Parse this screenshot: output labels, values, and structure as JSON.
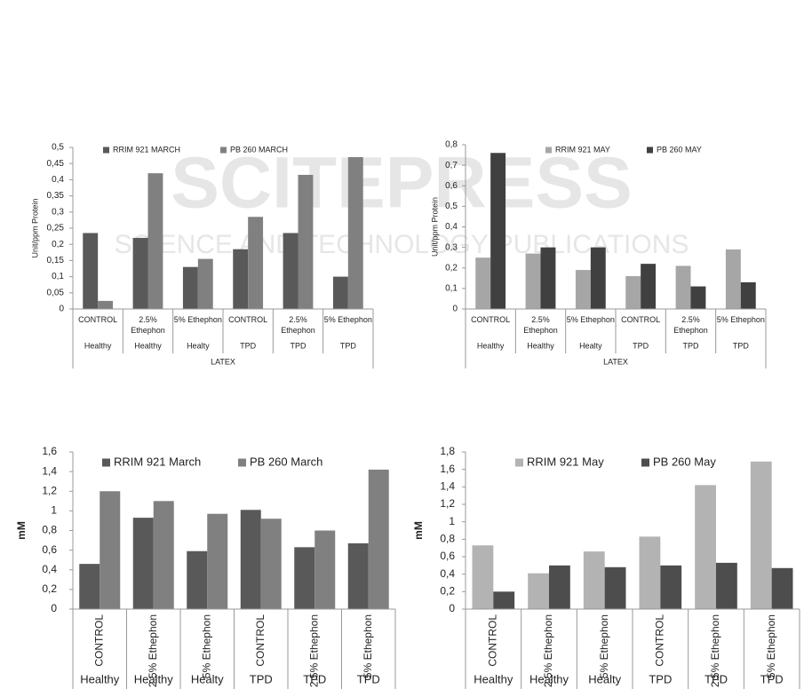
{
  "watermark": {
    "title": "SCITEPRESS",
    "subtitle": "SCIENCE AND TECHNOLOGY PUBLICATIONS"
  },
  "chart_data": [
    {
      "type": "bar",
      "ylabel": "Unit/ppm Protein",
      "xlabel": "LATEX",
      "categories": [
        "CONTROL",
        "2.5% Ethephon",
        "5% Ethephon",
        "CONTROL",
        "2.5% Ethephon",
        "5% Ethephon"
      ],
      "groups": [
        "Healthy",
        "Healthy",
        "Healty",
        "TPD",
        "TPD",
        "TPD"
      ],
      "series": [
        {
          "name": "RRIM 921 MARCH",
          "color": "#595959",
          "values": [
            0.235,
            0.22,
            0.13,
            0.185,
            0.235,
            0.1
          ]
        },
        {
          "name": "PB 260 MARCH",
          "color": "#808080",
          "values": [
            0.025,
            0.42,
            0.155,
            0.285,
            0.415,
            0.47
          ]
        }
      ],
      "ylim": [
        0,
        0.5
      ],
      "yticks": [
        0,
        {
          "value": 0.05,
          "label": "0,05"
        },
        {
          "value": 0.1,
          "label": "0,1"
        },
        {
          "value": 0.15,
          "label": "0,15"
        },
        {
          "value": 0.2,
          "label": "0,2"
        },
        {
          "value": 0.25,
          "label": "0,25"
        },
        {
          "value": 0.3,
          "label": "0,3"
        },
        {
          "value": 0.35,
          "label": "0,35"
        },
        {
          "value": 0.4,
          "label": "0,4"
        },
        {
          "value": 0.45,
          "label": "0,45"
        },
        {
          "value": 0.5,
          "label": "0,5"
        }
      ]
    },
    {
      "type": "bar",
      "ylabel": "Unit/ppm Protein",
      "xlabel": "LATEX",
      "categories": [
        "CONTROL",
        "2.5% Ethephon",
        "5% Ethephon",
        "CONTROL",
        "2.5% Ethephon",
        "5% Ethephon"
      ],
      "groups": [
        "Healthy",
        "Healthy",
        "Healty",
        "TPD",
        "TPD",
        "TPD"
      ],
      "series": [
        {
          "name": "RRIM 921 MAY",
          "color": "#a6a6a6",
          "values": [
            0.25,
            0.27,
            0.19,
            0.16,
            0.21,
            0.29
          ]
        },
        {
          "name": "PB 260 MAY",
          "color": "#404040",
          "values": [
            0.76,
            0.3,
            0.3,
            0.22,
            0.11,
            0.13
          ]
        }
      ],
      "ylim": [
        0,
        0.8
      ],
      "yticks": [
        0,
        {
          "value": 0.1,
          "label": "0,1"
        },
        {
          "value": 0.2,
          "label": "0,2"
        },
        {
          "value": 0.3,
          "label": "0,3"
        },
        {
          "value": 0.4,
          "label": "0,4"
        },
        {
          "value": 0.5,
          "label": "0,5"
        },
        {
          "value": 0.6,
          "label": "0,6"
        },
        {
          "value": 0.7,
          "label": "0,7"
        },
        {
          "value": 0.8,
          "label": "0,8"
        }
      ]
    },
    {
      "type": "bar",
      "ylabel": "mM",
      "categories": [
        "CONTROL",
        "2.5% Ethephon",
        "5% Ethephon",
        "CONTROL",
        "2.5% Ethephon",
        "5% Ethephon"
      ],
      "groups": [
        "Healthy",
        "Healthy",
        "Healty",
        "TPD",
        "TPD",
        "TPD"
      ],
      "series": [
        {
          "name": "RRIM 921 March",
          "color": "#595959",
          "values": [
            0.46,
            0.93,
            0.59,
            1.01,
            0.63,
            0.67
          ]
        },
        {
          "name": "PB 260 March",
          "color": "#808080",
          "values": [
            1.2,
            1.1,
            0.97,
            0.92,
            0.8,
            1.42
          ]
        }
      ],
      "ylim": [
        0,
        1.6
      ],
      "yticks": [
        0,
        {
          "value": 0.2,
          "label": "0,2"
        },
        {
          "value": 0.4,
          "label": "0,4"
        },
        {
          "value": 0.6,
          "label": "0,6"
        },
        {
          "value": 0.8,
          "label": "0,8"
        },
        1,
        {
          "value": 1.2,
          "label": "1,2"
        },
        {
          "value": 1.4,
          "label": "1,4"
        },
        {
          "value": 1.6,
          "label": "1,6"
        }
      ]
    },
    {
      "type": "bar",
      "ylabel": "mM",
      "categories": [
        "CONTROL",
        "2.5% Ethephon",
        "5% Ethephon",
        "CONTROL",
        "2.5% Ethephon",
        "5% Ethephon"
      ],
      "groups": [
        "Healthy",
        "Healthy",
        "Healty",
        "TPD",
        "TPD",
        "TPD"
      ],
      "series": [
        {
          "name": "RRIM 921 May",
          "color": "#b3b3b3",
          "values": [
            0.73,
            0.41,
            0.66,
            0.83,
            1.42,
            1.69
          ]
        },
        {
          "name": "PB 260 May",
          "color": "#4d4d4d",
          "values": [
            0.2,
            0.5,
            0.48,
            0.5,
            0.53,
            0.47
          ]
        }
      ],
      "ylim": [
        0,
        1.8
      ],
      "yticks": [
        0,
        {
          "value": 0.2,
          "label": "0,2"
        },
        {
          "value": 0.4,
          "label": "0,4"
        },
        {
          "value": 0.6,
          "label": "0,6"
        },
        {
          "value": 0.8,
          "label": "0,8"
        },
        1,
        {
          "value": 1.2,
          "label": "1,2"
        },
        {
          "value": 1.4,
          "label": "1,4"
        },
        {
          "value": 1.6,
          "label": "1,6"
        },
        {
          "value": 1.8,
          "label": "1,8"
        }
      ]
    }
  ]
}
